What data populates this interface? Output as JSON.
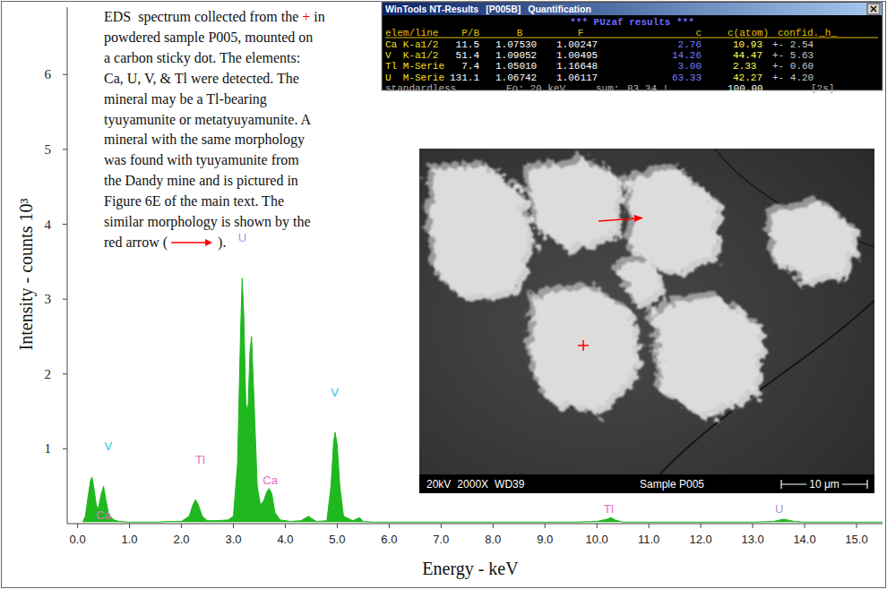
{
  "chart_data": {
    "type": "area",
    "color": "#1fb81f",
    "x_label": "Energy - keV",
    "y_label": "Intensity - counts 10³",
    "xlim": [
      -0.2,
      15.5
    ],
    "ylim": [
      0,
      6.9
    ],
    "grid": false,
    "xticks": [
      {
        "value": 0,
        "label": "0.0"
      },
      {
        "value": 1,
        "label": "1.0"
      },
      {
        "value": 2,
        "label": "2.0"
      },
      {
        "value": 3,
        "label": "3.0"
      },
      {
        "value": 4,
        "label": "4.0"
      },
      {
        "value": 5,
        "label": "5.0"
      },
      {
        "value": 6,
        "label": "6.0"
      },
      {
        "value": 7,
        "label": "7.0"
      },
      {
        "value": 8,
        "label": "8.0"
      },
      {
        "value": 9,
        "label": "9.0"
      },
      {
        "value": 10,
        "label": "10.0"
      },
      {
        "value": 11,
        "label": "11.0"
      },
      {
        "value": 12,
        "label": "12.0"
      },
      {
        "value": 13,
        "label": "13.0"
      },
      {
        "value": 14,
        "label": "14.0"
      },
      {
        "value": 15,
        "label": "15.0"
      }
    ],
    "yticks": [
      1,
      2,
      3,
      4,
      5,
      6
    ],
    "x": [
      0.1,
      0.15,
      0.2,
      0.25,
      0.28,
      0.32,
      0.36,
      0.4,
      0.45,
      0.5,
      0.55,
      0.6,
      0.7,
      0.8,
      1.0,
      1.2,
      1.5,
      1.8,
      2.0,
      2.15,
      2.22,
      2.27,
      2.32,
      2.4,
      2.5,
      2.7,
      2.9,
      3.0,
      3.08,
      3.14,
      3.17,
      3.2,
      3.24,
      3.28,
      3.32,
      3.35,
      3.4,
      3.46,
      3.52,
      3.58,
      3.64,
      3.69,
      3.74,
      3.8,
      3.9,
      4.1,
      4.3,
      4.4,
      4.45,
      4.5,
      4.6,
      4.8,
      4.88,
      4.93,
      4.96,
      5.0,
      5.05,
      5.12,
      5.3,
      5.43,
      5.5,
      5.7,
      6.0,
      6.5,
      7.0,
      7.5,
      8.0,
      8.5,
      9.0,
      9.5,
      10.0,
      10.2,
      10.27,
      10.35,
      10.5,
      11.0,
      11.5,
      12.0,
      12.5,
      13.0,
      13.4,
      13.6,
      13.8,
      14.0,
      14.5,
      15.0,
      15.5
    ],
    "values": [
      0.02,
      0.1,
      0.35,
      0.58,
      0.62,
      0.45,
      0.25,
      0.2,
      0.38,
      0.5,
      0.3,
      0.12,
      0.05,
      0.03,
      0.02,
      0.02,
      0.02,
      0.03,
      0.03,
      0.1,
      0.25,
      0.32,
      0.26,
      0.1,
      0.04,
      0.04,
      0.05,
      0.1,
      0.8,
      2.6,
      3.28,
      2.8,
      1.6,
      1.5,
      2.3,
      2.5,
      1.6,
      0.5,
      0.25,
      0.3,
      0.42,
      0.47,
      0.4,
      0.15,
      0.05,
      0.03,
      0.04,
      0.08,
      0.1,
      0.07,
      0.03,
      0.04,
      0.5,
      1.1,
      1.22,
      1.05,
      0.5,
      0.1,
      0.04,
      0.08,
      0.03,
      0.02,
      0.02,
      0.02,
      0.02,
      0.02,
      0.02,
      0.02,
      0.02,
      0.02,
      0.03,
      0.06,
      0.08,
      0.05,
      0.02,
      0.02,
      0.02,
      0.02,
      0.02,
      0.02,
      0.03,
      0.06,
      0.03,
      0.02,
      0.02,
      0.02,
      0.02
    ],
    "annotations": [
      {
        "text": "Ca",
        "x": 0.5,
        "y": 0.06,
        "color": "#e86ac8"
      },
      {
        "text": "V",
        "x": 0.59,
        "y": 0.98,
        "color": "#20c8e0"
      },
      {
        "text": "Tl",
        "x": 2.36,
        "y": 0.8,
        "color": "#e86ac8"
      },
      {
        "text": "U",
        "x": 3.17,
        "y": 3.77,
        "color": "#a898e0"
      },
      {
        "text": "Ca",
        "x": 3.71,
        "y": 0.53,
        "color": "#e86ac8"
      },
      {
        "text": "V",
        "x": 4.95,
        "y": 1.7,
        "color": "#20c8e0"
      },
      {
        "text": "Tl",
        "x": 10.23,
        "y": 0.14,
        "color": "#e86ac8"
      },
      {
        "text": "U",
        "x": 13.51,
        "y": 0.14,
        "color": "#a898e0"
      }
    ]
  },
  "caption": {
    "highlight": "+",
    "lines": [
      [
        "EDS  spectrum collected from the ",
        "+",
        " in"
      ],
      [
        "powdered sample P005, mounted on"
      ],
      [
        "a carbon sticky dot. The elements:"
      ],
      [
        "Ca, U, V, & Tl were detected. The"
      ],
      [
        "mineral may be a Tl-bearing"
      ],
      [
        "tyuyamunite or metatyuyamunite. A"
      ],
      [
        "mineral with the same morphology"
      ],
      [
        "was found with tyuyamunite from"
      ],
      [
        "the Dandy mine and is pictured in"
      ],
      [
        "Figure 6E of the main text. The"
      ],
      [
        "similar morphology is shown by the"
      ],
      [
        "red arrow (",
        ")."
      ]
    ]
  },
  "results_window": {
    "title": "WinTools NT-Results",
    "id": "[P005B]",
    "section": "Quantification",
    "heading": "*** PUzaf results ***",
    "columns": [
      "elem/line",
      "P/B",
      "B",
      "F",
      "c",
      "c(atom)",
      "confid._h_"
    ],
    "rows": [
      [
        "Ca K-a1/2",
        "11.5",
        "1.07530",
        "1.00247",
        "2.76",
        "10.93",
        "+- 2.54"
      ],
      [
        "V  K-a1/2",
        "51.4",
        "1.09052",
        "1.00495",
        "14.26",
        "44.47",
        "+- 5.63"
      ],
      [
        "Tl M-Serie",
        "7.4",
        "1.05010",
        "1.16648",
        "3.00",
        "2.33",
        "+- 0.60"
      ],
      [
        "U  M-Serie",
        "131.1",
        "1.06742",
        "1.06117",
        "63.33",
        "42.27",
        "+- 4.20"
      ]
    ],
    "footer": [
      "standardless",
      "Eo: 20 keV",
      "sum:",
      "83.34 !",
      "100.00",
      "[2s]"
    ]
  },
  "micrograph": {
    "info": [
      "20kV",
      "2000X",
      "WD39"
    ],
    "sample": "Sample P005",
    "scale": "10 μm"
  }
}
